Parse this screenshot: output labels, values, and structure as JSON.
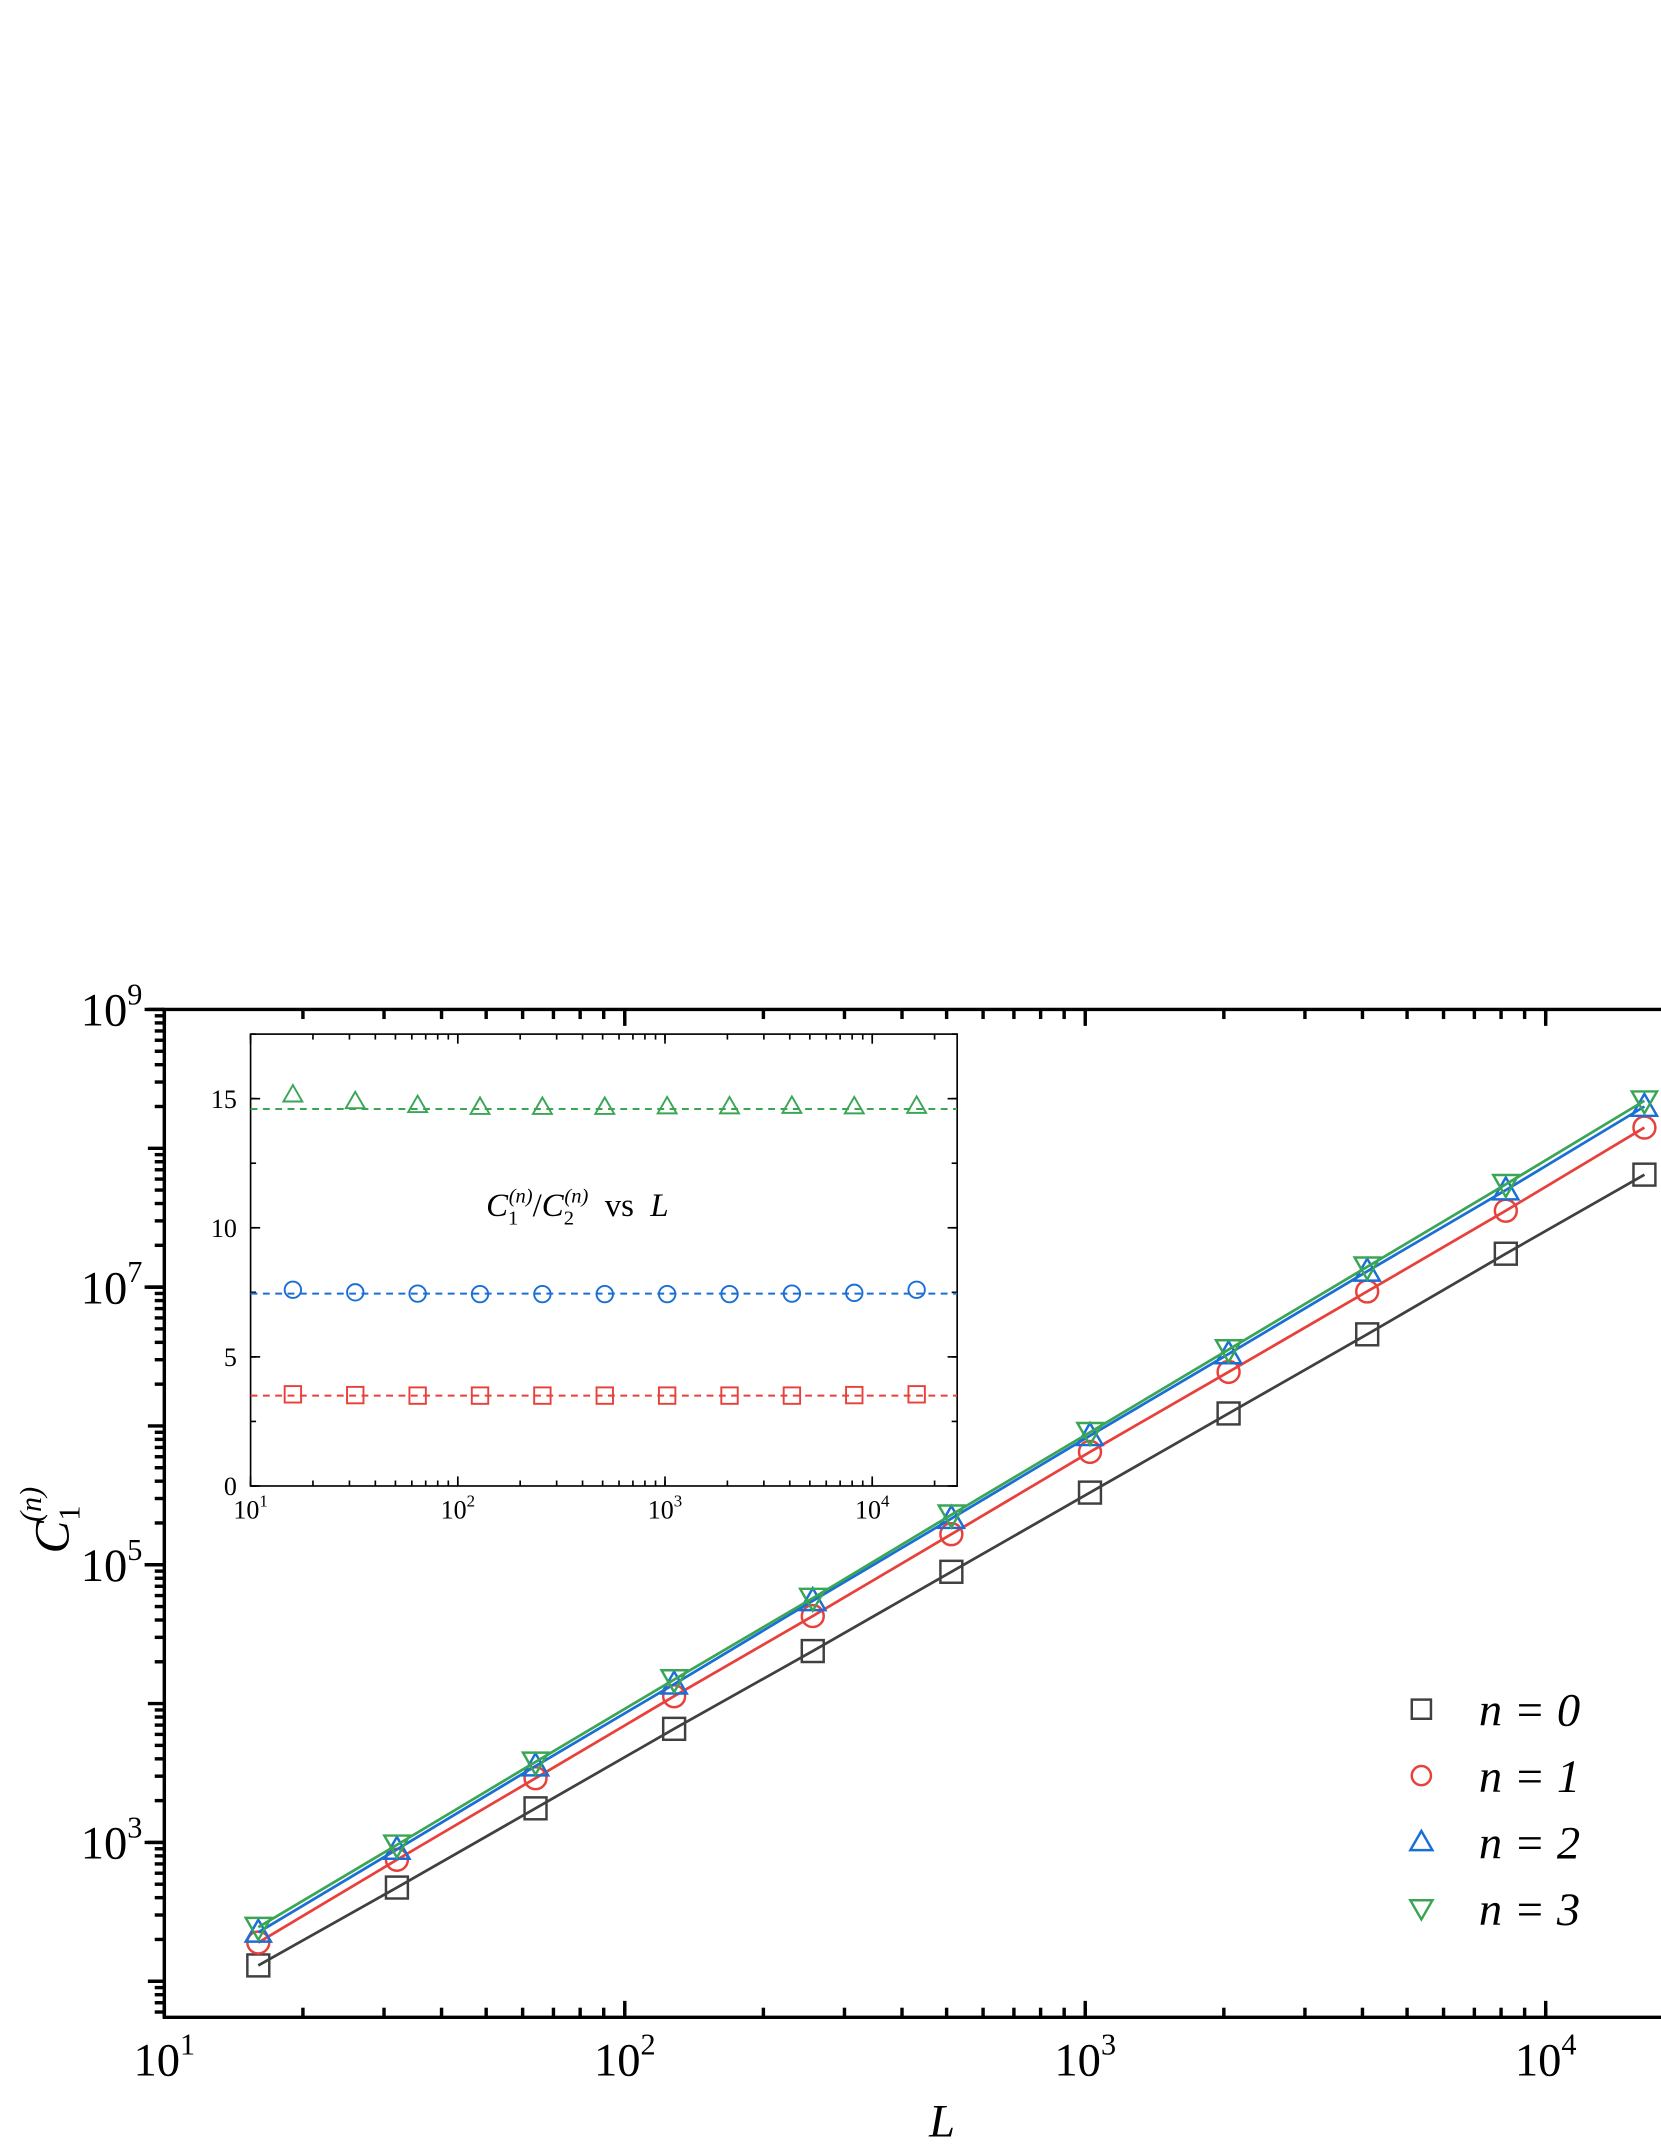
{
  "chart_data": [
    {
      "type": "line",
      "x": [
        16,
        32,
        64,
        128,
        256,
        512,
        1024,
        2048,
        4096,
        8192,
        16384
      ],
      "xlabel": "L",
      "ylabel": {
        "base": "C",
        "sub": "1",
        "sup": "(n)"
      },
      "xscale": "log",
      "yscale": "log",
      "xlim": [
        10,
        17800
      ],
      "ylim": [
        55,
        1000000000
      ],
      "xticks": [
        {
          "value": 10,
          "label": "10^1"
        },
        {
          "value": 100,
          "label": "10^2"
        },
        {
          "value": 1000,
          "label": "10^3"
        },
        {
          "value": 10000,
          "label": "10^4"
        }
      ],
      "yticks": [
        {
          "value": 1000,
          "label": "10^3"
        },
        {
          "value": 100000,
          "label": "10^5"
        },
        {
          "value": 10000000,
          "label": "10^7"
        },
        {
          "value": 1000000000,
          "label": "10^9"
        }
      ],
      "legend": "lower right",
      "series": [
        {
          "name": "n = 0",
          "color": "#404040",
          "marker": "square",
          "values": [
            130,
            473,
            1760,
            6580,
            23900,
            89000,
            331000,
            1230000,
            4570000,
            17400000,
            64600000
          ]
        },
        {
          "name": "n = 1",
          "color": "#e8403a",
          "marker": "circle",
          "values": [
            190,
            750,
            2900,
            11300,
            42700,
            166000,
            650000,
            2450000,
            9300000,
            35500000,
            141000000
          ]
        },
        {
          "name": "n = 2",
          "color": "#1a6fd6",
          "marker": "triangle-up",
          "values": [
            225,
            890,
            3550,
            13800,
            55000,
            215000,
            850000,
            3300000,
            13000000,
            50000000,
            200000000
          ]
        },
        {
          "name": "n = 3",
          "color": "#3aa655",
          "marker": "triangle-down",
          "values": [
            245,
            960,
            3800,
            14900,
            57500,
            229000,
            900000,
            3550000,
            14000000,
            55000000,
            220000000
          ]
        }
      ]
    },
    {
      "type": "scatter",
      "x": [
        16,
        32,
        64,
        128,
        256,
        512,
        1024,
        2048,
        4096,
        8192,
        16384
      ],
      "annotation": {
        "base1": "C",
        "sub1": "1",
        "sup1": "(n)",
        "slash": "/",
        "base2": "C",
        "sub2": "2",
        "sup2": "(n)",
        "vs": "vs",
        "var": "L"
      },
      "xscale": "log",
      "xlim": [
        10,
        25700
      ],
      "ylim": [
        0,
        17.5
      ],
      "xticks": [
        {
          "value": 10,
          "label": "10^1"
        },
        {
          "value": 100,
          "label": "10^2"
        },
        {
          "value": 1000,
          "label": "10^3"
        },
        {
          "value": 10000,
          "label": "10^4"
        }
      ],
      "yticks": [
        0,
        5,
        10,
        15
      ],
      "series": [
        {
          "color": "#e8403a",
          "marker": "square",
          "fit": 3.5,
          "values": [
            3.55,
            3.52,
            3.5,
            3.5,
            3.5,
            3.5,
            3.5,
            3.5,
            3.5,
            3.52,
            3.55
          ]
        },
        {
          "color": "#1a6fd6",
          "marker": "circle",
          "fit": 7.45,
          "values": [
            7.6,
            7.5,
            7.45,
            7.43,
            7.43,
            7.43,
            7.43,
            7.43,
            7.45,
            7.48,
            7.6
          ]
        },
        {
          "color": "#3aa655",
          "marker": "triangle-up",
          "fit": 14.6,
          "values": [
            15.16,
            14.9,
            14.75,
            14.68,
            14.68,
            14.68,
            14.7,
            14.7,
            14.72,
            14.7,
            14.72
          ]
        }
      ]
    }
  ]
}
